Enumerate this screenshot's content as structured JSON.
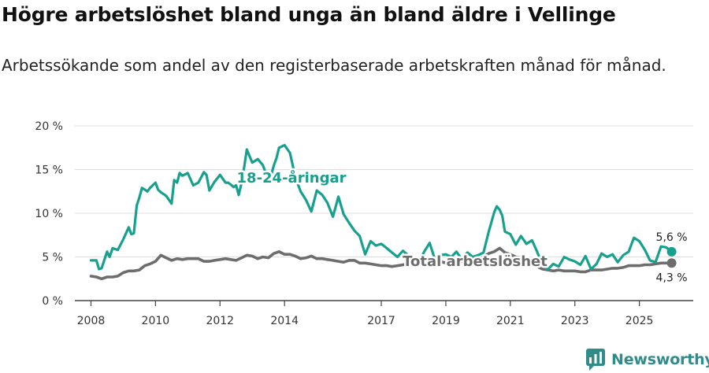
{
  "title": "Högre arbetslöshet bland unga än bland äldre i Vellinge",
  "subtitle": "Arbetssökande som andel av den registerbaserade arbetskraften månad för månad.",
  "brand": "Newsworthy",
  "colors": {
    "youth": "#18a08f",
    "total": "#6d6d6d",
    "grid": "#dddddd",
    "axis": "#444444",
    "brand": "#2f8c8a"
  },
  "chart_data": {
    "type": "line",
    "title": "Högre arbetslöshet bland unga än bland äldre i Vellinge",
    "xlabel": "",
    "ylabel": "",
    "ylim": [
      0,
      20
    ],
    "xlim": [
      2007.5,
      2026.67
    ],
    "yticks": [
      0,
      5,
      10,
      15,
      20
    ],
    "ytick_labels": [
      "0 %",
      "5 %",
      "10 %",
      "15 %",
      "20 %"
    ],
    "xticks": [
      2008,
      2010,
      2012,
      2014,
      2017,
      2019,
      2021,
      2023,
      2025
    ],
    "xtick_labels": [
      "2008",
      "2010",
      "2012",
      "2014",
      "2017",
      "2019",
      "2021",
      "2023",
      "2025"
    ],
    "series": [
      {
        "name": "18-24-åringar",
        "color": "#18a08f",
        "last_label": "5,6 %",
        "x": [
          2008.0,
          2008.17,
          2008.25,
          2008.33,
          2008.5,
          2008.58,
          2008.67,
          2008.83,
          2009.0,
          2009.17,
          2009.25,
          2009.33,
          2009.42,
          2009.5,
          2009.58,
          2009.67,
          2009.75,
          2009.83,
          2010.0,
          2010.08,
          2010.17,
          2010.33,
          2010.5,
          2010.58,
          2010.67,
          2010.75,
          2010.83,
          2011.0,
          2011.17,
          2011.33,
          2011.5,
          2011.58,
          2011.67,
          2011.83,
          2012.0,
          2012.17,
          2012.25,
          2012.33,
          2012.42,
          2012.5,
          2012.58,
          2012.67,
          2012.75,
          2012.83,
          2013.0,
          2013.17,
          2013.33,
          2013.42,
          2013.5,
          2013.58,
          2013.67,
          2013.75,
          2013.83,
          2014.0,
          2014.17,
          2014.33,
          2014.5,
          2014.67,
          2014.83,
          2015.0,
          2015.17,
          2015.33,
          2015.5,
          2015.67,
          2015.83,
          2016.0,
          2016.17,
          2016.33,
          2016.5,
          2016.67,
          2016.83,
          2017.0,
          2017.17,
          2017.33,
          2017.5,
          2017.67,
          2017.83,
          2018.0,
          2018.17,
          2018.33,
          2018.5,
          2018.67,
          2018.83,
          2019.0,
          2019.17,
          2019.33,
          2019.5,
          2019.67,
          2019.83,
          2020.0,
          2020.17,
          2020.33,
          2020.5,
          2020.58,
          2020.67,
          2020.75,
          2020.83,
          2021.0,
          2021.17,
          2021.33,
          2021.5,
          2021.67,
          2021.83,
          2022.0,
          2022.17,
          2022.33,
          2022.5,
          2022.67,
          2022.83,
          2023.0,
          2023.17,
          2023.33,
          2023.5,
          2023.67,
          2023.83,
          2024.0,
          2024.17,
          2024.33,
          2024.5,
          2024.67,
          2024.83,
          2025.0,
          2025.17,
          2025.33,
          2025.5,
          2025.67,
          2025.83,
          2026.0
        ],
        "values": [
          4.6,
          4.6,
          3.6,
          3.7,
          5.6,
          5.0,
          6.0,
          5.8,
          7.0,
          8.4,
          7.6,
          7.7,
          10.9,
          11.8,
          12.9,
          12.7,
          12.5,
          12.9,
          13.5,
          12.7,
          12.4,
          12.0,
          11.1,
          13.8,
          13.5,
          14.6,
          14.3,
          14.6,
          13.2,
          13.5,
          14.7,
          14.4,
          12.6,
          13.6,
          14.4,
          13.5,
          13.5,
          13.3,
          13.0,
          13.2,
          12.1,
          13.5,
          15.3,
          17.3,
          15.8,
          16.2,
          15.5,
          14.6,
          14.0,
          14.3,
          15.5,
          16.3,
          17.5,
          17.8,
          16.9,
          14.2,
          12.5,
          11.5,
          10.2,
          12.6,
          12.1,
          11.2,
          9.6,
          11.9,
          9.9,
          8.9,
          8.0,
          7.4,
          5.3,
          6.8,
          6.3,
          6.5,
          6.0,
          5.5,
          5.0,
          5.7,
          5.2,
          4.8,
          4.4,
          5.6,
          6.6,
          4.6,
          5.2,
          5.3,
          5.0,
          5.6,
          4.7,
          5.5,
          5.0,
          5.2,
          5.5,
          7.9,
          10.1,
          10.8,
          10.4,
          9.7,
          7.9,
          7.6,
          6.4,
          7.4,
          6.5,
          6.9,
          5.6,
          4.0,
          3.6,
          4.2,
          3.9,
          5.0,
          4.7,
          4.5,
          4.1,
          5.1,
          3.6,
          4.2,
          5.4,
          5.0,
          5.3,
          4.4,
          5.2,
          5.6,
          7.2,
          6.8,
          5.8,
          4.6,
          4.4,
          6.2,
          6.1,
          5.6
        ]
      },
      {
        "name": "Total arbetslöshet",
        "color": "#6d6d6d",
        "last_label": "4,3 %",
        "x": [
          2008.0,
          2008.17,
          2008.33,
          2008.5,
          2008.67,
          2008.83,
          2009.0,
          2009.17,
          2009.33,
          2009.5,
          2009.67,
          2009.83,
          2010.0,
          2010.17,
          2010.33,
          2010.5,
          2010.67,
          2010.83,
          2011.0,
          2011.17,
          2011.33,
          2011.5,
          2011.67,
          2011.83,
          2012.0,
          2012.17,
          2012.33,
          2012.5,
          2012.67,
          2012.83,
          2013.0,
          2013.17,
          2013.33,
          2013.5,
          2013.67,
          2013.83,
          2014.0,
          2014.17,
          2014.33,
          2014.5,
          2014.67,
          2014.83,
          2015.0,
          2015.17,
          2015.33,
          2015.5,
          2015.67,
          2015.83,
          2016.0,
          2016.17,
          2016.33,
          2016.5,
          2016.67,
          2016.83,
          2017.0,
          2017.17,
          2017.33,
          2017.5,
          2017.67,
          2017.83,
          2018.0,
          2018.17,
          2018.33,
          2018.5,
          2018.67,
          2018.83,
          2019.0,
          2019.17,
          2019.33,
          2019.5,
          2019.67,
          2019.83,
          2020.0,
          2020.17,
          2020.33,
          2020.5,
          2020.67,
          2020.83,
          2021.0,
          2021.17,
          2021.33,
          2021.5,
          2021.67,
          2021.83,
          2022.0,
          2022.17,
          2022.33,
          2022.5,
          2022.67,
          2022.83,
          2023.0,
          2023.17,
          2023.33,
          2023.5,
          2023.67,
          2023.83,
          2024.0,
          2024.17,
          2024.33,
          2024.5,
          2024.67,
          2024.83,
          2025.0,
          2025.17,
          2025.33,
          2025.5,
          2025.67,
          2025.83,
          2026.0
        ],
        "values": [
          2.8,
          2.7,
          2.5,
          2.7,
          2.7,
          2.8,
          3.2,
          3.4,
          3.4,
          3.5,
          4.0,
          4.2,
          4.5,
          5.2,
          4.9,
          4.6,
          4.8,
          4.7,
          4.8,
          4.8,
          4.8,
          4.5,
          4.5,
          4.6,
          4.7,
          4.8,
          4.7,
          4.6,
          4.9,
          5.2,
          5.1,
          4.8,
          5.0,
          4.9,
          5.4,
          5.6,
          5.3,
          5.3,
          5.1,
          4.8,
          4.9,
          5.1,
          4.8,
          4.8,
          4.7,
          4.6,
          4.5,
          4.4,
          4.6,
          4.6,
          4.3,
          4.3,
          4.2,
          4.1,
          4.0,
          4.0,
          3.9,
          4.0,
          4.1,
          4.2,
          4.3,
          4.6,
          4.5,
          4.6,
          4.4,
          4.5,
          4.3,
          4.4,
          4.4,
          4.5,
          4.6,
          4.7,
          4.7,
          5.0,
          5.4,
          5.6,
          6.0,
          5.5,
          5.3,
          5.0,
          4.9,
          4.5,
          4.1,
          3.9,
          3.6,
          3.5,
          3.4,
          3.5,
          3.4,
          3.4,
          3.4,
          3.3,
          3.3,
          3.5,
          3.5,
          3.5,
          3.6,
          3.7,
          3.7,
          3.8,
          4.0,
          4.0,
          4.0,
          4.1,
          4.1,
          4.2,
          4.3,
          4.3,
          4.3
        ]
      }
    ]
  }
}
